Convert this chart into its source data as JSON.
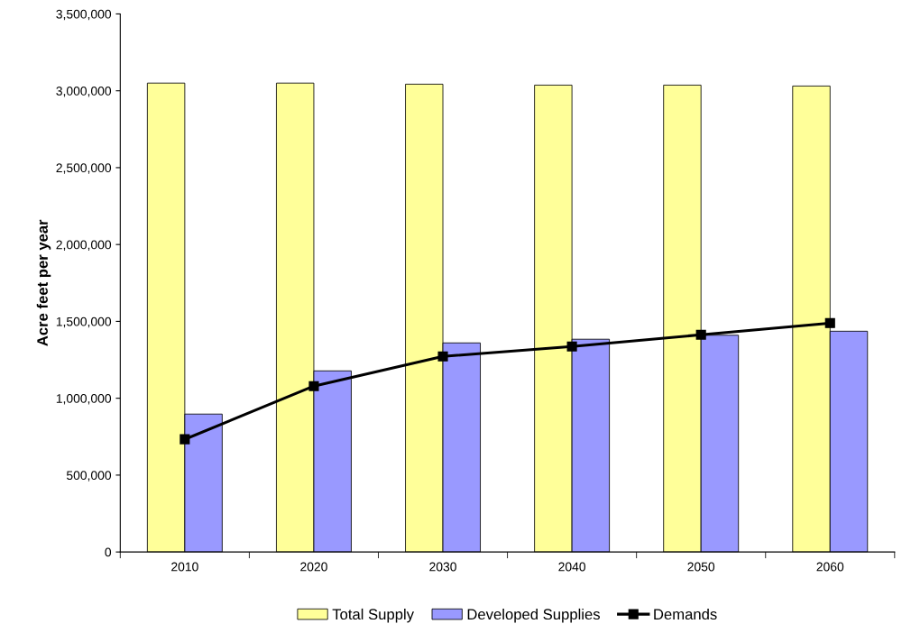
{
  "chart_data": {
    "type": "bar",
    "ylabel": "Acre feet per year",
    "categories": [
      "2010",
      "2020",
      "2030",
      "2040",
      "2050",
      "2060"
    ],
    "series": [
      {
        "name": "Total Supply",
        "color": "#ffff99",
        "values": [
          3050000,
          3050000,
          3043000,
          3037000,
          3037000,
          3031000
        ]
      },
      {
        "name": "Developed Supplies",
        "color": "#9999ff",
        "values": [
          897000,
          1178000,
          1360000,
          1384000,
          1410000,
          1436000
        ]
      },
      {
        "name": "Demands",
        "type": "line",
        "color": "#000000",
        "marker": "square",
        "values": [
          733000,
          1079000,
          1272000,
          1337000,
          1413000,
          1489000
        ]
      }
    ],
    "ylim": [
      0,
      3500000
    ],
    "yticks": [
      {
        "value": 0,
        "label": "0"
      },
      {
        "value": 500000,
        "label": "500,000"
      },
      {
        "value": 1000000,
        "label": "1,000,000"
      },
      {
        "value": 1500000,
        "label": "1,500,000"
      },
      {
        "value": 2000000,
        "label": "2,000,000"
      },
      {
        "value": 2500000,
        "label": "2,500,000"
      },
      {
        "value": 3000000,
        "label": "3,000,000"
      },
      {
        "value": 3500000,
        "label": "3,500,000"
      }
    ],
    "grid": false,
    "legend": "bottom"
  }
}
